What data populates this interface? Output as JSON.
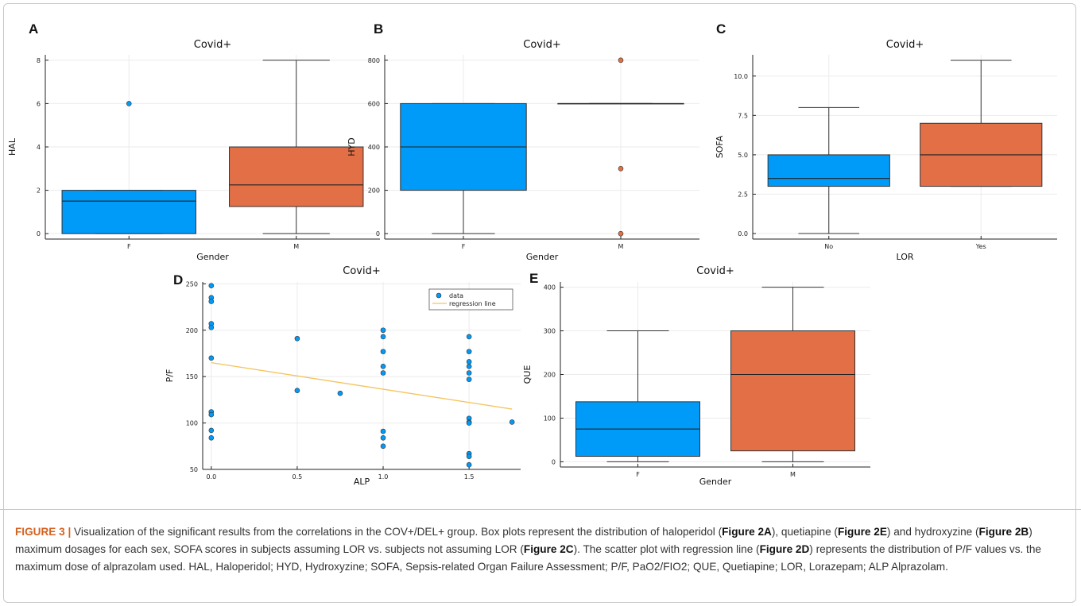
{
  "colors": {
    "blue": "#009af9",
    "orange": "#e26f46",
    "regression": "#f5c35c",
    "caption_label": "#d6611e"
  },
  "chart_data": [
    {
      "id": "A",
      "type": "box",
      "title": "Covid+",
      "xlabel": "Gender",
      "ylabel": "HAL",
      "ylim": [
        -0.25,
        8.25
      ],
      "yticks": [
        0,
        2,
        4,
        6,
        8
      ],
      "ytick_labels": [
        "0",
        "2",
        "4",
        "6",
        "8"
      ],
      "categories": [
        "F",
        "M"
      ],
      "boxes": [
        {
          "category": "F",
          "color": "blue",
          "whisker_low": 0,
          "q1": 0,
          "median": 1.5,
          "q3": 2,
          "whisker_high": 2,
          "outliers": [
            6
          ]
        },
        {
          "category": "M",
          "color": "orange",
          "whisker_low": 0,
          "q1": 1.25,
          "median": 2.25,
          "q3": 4,
          "whisker_high": 8,
          "outliers": []
        }
      ]
    },
    {
      "id": "B",
      "type": "box",
      "title": "Covid+",
      "xlabel": "Gender",
      "ylabel": "HYD",
      "ylim": [
        -25,
        825
      ],
      "yticks": [
        0,
        200,
        400,
        600,
        800
      ],
      "ytick_labels": [
        "0",
        "200",
        "400",
        "600",
        "800"
      ],
      "categories": [
        "F",
        "M"
      ],
      "boxes": [
        {
          "category": "F",
          "color": "blue",
          "whisker_low": 0,
          "q1": 200,
          "median": 400,
          "q3": 600,
          "whisker_high": 600,
          "outliers": []
        },
        {
          "category": "M",
          "color": "orange",
          "whisker_low": 600,
          "q1": 600,
          "median": 600,
          "q3": 600,
          "whisker_high": 600,
          "outliers": [
            0,
            300,
            800
          ]
        }
      ]
    },
    {
      "id": "C",
      "type": "box",
      "title": "Covid+",
      "xlabel": "LOR",
      "ylabel": "SOFA",
      "ylim": [
        -0.35,
        11.35
      ],
      "yticks": [
        0,
        2.5,
        5,
        7.5,
        10
      ],
      "ytick_labels": [
        "0.0",
        "2.5",
        "5.0",
        "7.5",
        "10.0"
      ],
      "categories": [
        "No",
        "Yes"
      ],
      "boxes": [
        {
          "category": "No",
          "color": "blue",
          "whisker_low": 0,
          "q1": 3,
          "median": 3.5,
          "q3": 5,
          "whisker_high": 8,
          "outliers": []
        },
        {
          "category": "Yes",
          "color": "orange",
          "whisker_low": 3,
          "q1": 3,
          "median": 5,
          "q3": 7,
          "whisker_high": 11,
          "outliers": []
        }
      ]
    },
    {
      "id": "D",
      "type": "scatter",
      "title": "Covid+",
      "xlabel": "ALP",
      "ylabel": "P/F",
      "xlim": [
        -0.05,
        1.8
      ],
      "ylim": [
        50,
        252
      ],
      "xticks": [
        0,
        0.5,
        1,
        1.5
      ],
      "xtick_labels": [
        "0.0",
        "0.5",
        "1.0",
        "1.5"
      ],
      "yticks": [
        50,
        100,
        150,
        200,
        250
      ],
      "ytick_labels": [
        "50",
        "100",
        "150",
        "200",
        "250"
      ],
      "series": [
        {
          "name": "data",
          "color": "blue",
          "points": [
            [
              0,
              248
            ],
            [
              0,
              235
            ],
            [
              0,
              231
            ],
            [
              0,
              207
            ],
            [
              0,
              203
            ],
            [
              0,
              170
            ],
            [
              0,
              112
            ],
            [
              0,
              109
            ],
            [
              0,
              92
            ],
            [
              0,
              84
            ],
            [
              0.5,
              191
            ],
            [
              0.5,
              135
            ],
            [
              0.75,
              132
            ],
            [
              1,
              200
            ],
            [
              1,
              193
            ],
            [
              1,
              177
            ],
            [
              1,
              161
            ],
            [
              1,
              154
            ],
            [
              1,
              91
            ],
            [
              1,
              84
            ],
            [
              1,
              75
            ],
            [
              1.5,
              193
            ],
            [
              1.5,
              177
            ],
            [
              1.5,
              166
            ],
            [
              1.5,
              161
            ],
            [
              1.5,
              154
            ],
            [
              1.5,
              147
            ],
            [
              1.5,
              105
            ],
            [
              1.5,
              101
            ],
            [
              1.5,
              100
            ],
            [
              1.5,
              67
            ],
            [
              1.5,
              64
            ],
            [
              1.5,
              55
            ],
            [
              1.75,
              101
            ]
          ]
        }
      ],
      "regression_line": {
        "name": "regression line",
        "color": "regression",
        "points": [
          [
            0,
            165
          ],
          [
            1.75,
            115
          ]
        ]
      },
      "legend": {
        "position": "top-right",
        "entries": [
          "data",
          "regression line"
        ]
      }
    },
    {
      "id": "E",
      "type": "box",
      "title": "Covid+",
      "xlabel": "Gender",
      "ylabel": "QUE",
      "ylim": [
        -12,
        412
      ],
      "yticks": [
        0,
        100,
        200,
        300,
        400
      ],
      "ytick_labels": [
        "0",
        "100",
        "200",
        "300",
        "400"
      ],
      "categories": [
        "F",
        "M"
      ],
      "boxes": [
        {
          "category": "F",
          "color": "blue",
          "whisker_low": 0,
          "q1": 12.5,
          "median": 75,
          "q3": 137.5,
          "whisker_high": 300,
          "outliers": []
        },
        {
          "category": "M",
          "color": "orange",
          "whisker_low": 0,
          "q1": 25,
          "median": 200,
          "q3": 300,
          "whisker_high": 400,
          "outliers": []
        }
      ]
    }
  ],
  "caption": {
    "label": "FIGURE 3 |",
    "parts": [
      {
        "t": " Visualization of the significant results from the correlations in the COV+/DEL+ group. Box plots represent the distribution of haloperidol (",
        "b": false
      },
      {
        "t": "Figure 2A",
        "b": true
      },
      {
        "t": "), quetiapine (",
        "b": false
      },
      {
        "t": "Figure 2E",
        "b": true
      },
      {
        "t": ") and hydroxyzine (",
        "b": false
      },
      {
        "t": "Figure 2B",
        "b": true
      },
      {
        "t": ") maximum dosages for each sex, SOFA scores in subjects assuming LOR vs. subjects not assuming LOR (",
        "b": false
      },
      {
        "t": "Figure 2C",
        "b": true
      },
      {
        "t": "). The scatter plot with regression line (",
        "b": false
      },
      {
        "t": "Figure 2D",
        "b": true
      },
      {
        "t": ") represents the distribution of P/F values vs. the maximum dose of alprazolam used. HAL, Haloperidol; HYD, Hydroxyzine; SOFA, Sepsis-related Organ Failure Assessment; P/F, PaO2/FIO2; QUE, Quetiapine; LOR, Lorazepam; ALP Alprazolam.",
        "b": false
      }
    ]
  }
}
